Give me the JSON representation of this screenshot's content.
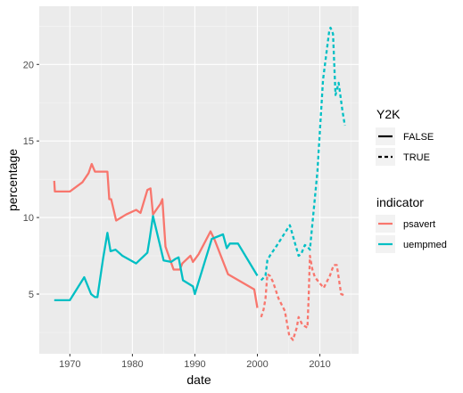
{
  "chart_data": {
    "type": "line",
    "xlabel": "date",
    "ylabel": "percentage",
    "xlim": [
      1965.1,
      2016.2
    ],
    "ylim": [
      1.1,
      23.8
    ],
    "x_ticks": [
      1970,
      1980,
      1990,
      2000,
      2010
    ],
    "x_tick_labels": [
      "1970",
      "1980",
      "1990",
      "2000",
      "2010"
    ],
    "y_ticks": [
      5,
      10,
      15,
      20
    ],
    "y_tick_labels": [
      "5",
      "10",
      "15",
      "20"
    ],
    "grid": true,
    "legend_placement": "right",
    "legends": [
      {
        "title": "Y2K",
        "entries": [
          {
            "label": "FALSE",
            "linetype": "solid"
          },
          {
            "label": "TRUE",
            "linetype": "dashed"
          }
        ]
      },
      {
        "title": "indicator",
        "entries": [
          {
            "label": "psavert",
            "color": "#F8766D"
          },
          {
            "label": "uempmed",
            "color": "#00BFC4"
          }
        ]
      }
    ],
    "series": [
      {
        "name": "psavert",
        "y2k": "FALSE",
        "color": "#F8766D",
        "linetype": "solid",
        "x": [
          1967.5,
          1967.6,
          1970,
          1972,
          1973,
          1973.5,
          1974,
          1974.5,
          1976,
          1976.3,
          1976.6,
          1977.4,
          1979,
          1980.6,
          1981.3,
          1982.4,
          1982.9,
          1983.3,
          1984.5,
          1984.8,
          1985.3,
          1986.6,
          1987.6,
          1988,
          1989.3,
          1989.7,
          1990.6,
          1992.5,
          1993.2,
          1995.3,
          1999.5,
          2000
        ],
        "y": [
          12.4,
          11.7,
          11.7,
          12.3,
          12.9,
          13.5,
          13.0,
          13.0,
          13.0,
          11.2,
          11.2,
          9.8,
          10.2,
          10.5,
          10.3,
          11.8,
          11.9,
          10.2,
          10.9,
          11.2,
          8.1,
          6.6,
          6.6,
          7.0,
          7.5,
          7.1,
          7.6,
          9.1,
          8.5,
          6.3,
          5.3,
          4.1
        ]
      },
      {
        "name": "uempmed",
        "y2k": "FALSE",
        "color": "#00BFC4",
        "linetype": "solid",
        "x": [
          1967.5,
          1970,
          1972.3,
          1973.4,
          1974,
          1974.4,
          1975.3,
          1976,
          1976.5,
          1977.3,
          1978.4,
          1980.6,
          1982.4,
          1982.8,
          1983.3,
          1984.3,
          1985,
          1986.2,
          1986.9,
          1987.4,
          1988.1,
          1989.7,
          1990,
          1992.7,
          1994.5,
          1995.1,
          1995.6,
          1996.9,
          2000
        ],
        "y": [
          4.6,
          4.6,
          6.1,
          5.0,
          4.8,
          4.8,
          7.3,
          9.0,
          7.8,
          7.9,
          7.5,
          7.0,
          7.7,
          8.7,
          10.1,
          8.4,
          7.2,
          7.1,
          7.3,
          7.4,
          5.9,
          5.5,
          5.0,
          8.6,
          8.9,
          8.0,
          8.3,
          8.3,
          6.2
        ]
      },
      {
        "name": "psavert",
        "y2k": "TRUE",
        "color": "#F8766D",
        "linetype": "dashed",
        "x": [
          2000.6,
          2001,
          2001.3,
          2001.6,
          2002,
          2002.5,
          2003.4,
          2004.4,
          2005.1,
          2005.7,
          2006.3,
          2006.6,
          2007.2,
          2008,
          2008.2,
          2008.4,
          2008.8,
          2009.2,
          2010.6,
          2011.6,
          2012.2,
          2012.7,
          2013.4,
          2014
        ],
        "y": [
          3.5,
          4.0,
          4.7,
          6.3,
          6.2,
          5.8,
          4.7,
          3.9,
          2.3,
          2.0,
          2.8,
          3.5,
          3.0,
          2.8,
          4.8,
          7.5,
          6.6,
          6.1,
          5.4,
          6.2,
          6.9,
          6.9,
          5.0,
          4.9
        ]
      },
      {
        "name": "uempmed",
        "y2k": "TRUE",
        "color": "#00BFC4",
        "linetype": "dashed",
        "x": [
          2000.6,
          2001.3,
          2001.6,
          2002,
          2003,
          2005.2,
          2006.6,
          2007,
          2007.6,
          2008,
          2008.4,
          2009.6,
          2010.5,
          2011.5,
          2011.7,
          2012.1,
          2012.5,
          2013,
          2013.6,
          2014
        ],
        "y": [
          5.9,
          6.2,
          7.2,
          7.5,
          8.1,
          9.5,
          7.5,
          7.6,
          8.2,
          8.1,
          7.9,
          13.0,
          19.0,
          22.2,
          22.4,
          22.0,
          18.0,
          18.8,
          17.0,
          16.0
        ]
      }
    ]
  }
}
